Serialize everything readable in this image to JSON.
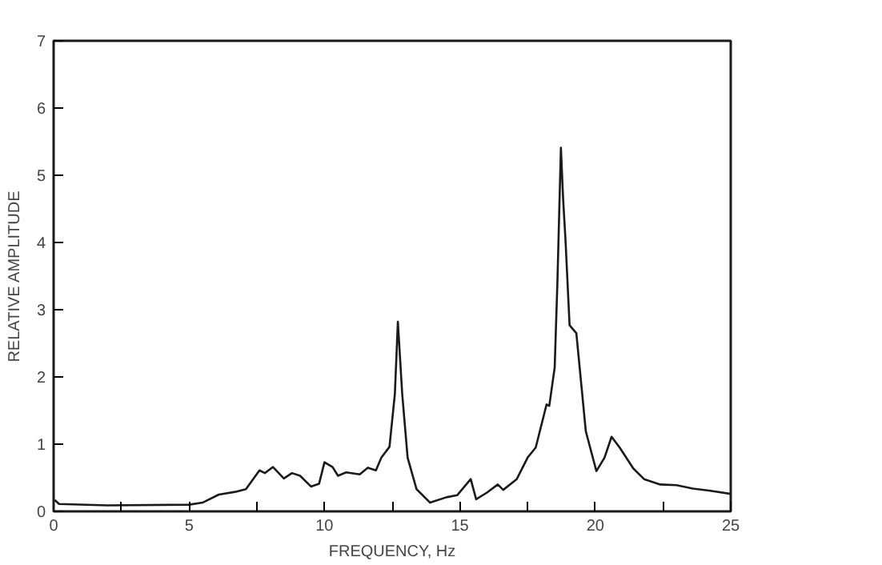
{
  "chart_data": {
    "type": "line",
    "xlabel": "FREQUENCY, Hz",
    "ylabel": "RELATIVE AMPLITUDE",
    "xlim": [
      0,
      25
    ],
    "ylim": [
      0,
      7
    ],
    "xticks": [
      0,
      {
        "value": 2.5,
        "label": null
      },
      5,
      {
        "value": 7.5,
        "label": null
      },
      10,
      {
        "value": 12.5,
        "label": null
      },
      15,
      {
        "value": 17.5,
        "label": null
      },
      20,
      {
        "value": 22.5,
        "label": null
      },
      25
    ],
    "yticks": [
      0,
      1,
      2,
      3,
      4,
      5,
      6,
      7
    ],
    "grid": false,
    "marker": "none",
    "line_style": "solid",
    "series": [
      {
        "color": "#1a1a1a",
        "x": [
          0.04,
          0.2,
          2,
          5,
          5.5,
          6.1,
          6.7,
          7.1,
          7.6,
          7.8,
          8.1,
          8.5,
          8.8,
          9.1,
          9.5,
          9.8,
          10,
          10.3,
          10.5,
          10.8,
          11.3,
          11.6,
          11.9,
          12.1,
          12.4,
          12.6,
          12.71,
          12.87,
          13.07,
          13.4,
          13.9,
          14.5,
          14.9,
          15.4,
          15.6,
          16,
          16.4,
          16.6,
          17.1,
          17.5,
          17.8,
          18.2,
          18.3,
          18.5,
          18.6,
          18.73,
          18.81,
          18.9,
          19.05,
          19.3,
          19.65,
          20.04,
          20.34,
          20.6,
          20.9,
          21.4,
          21.8,
          22.4,
          23,
          23.6,
          24.2,
          25
        ],
        "values": [
          0.17,
          0.11,
          0.09,
          0.1,
          0.13,
          0.25,
          0.29,
          0.33,
          0.61,
          0.57,
          0.66,
          0.49,
          0.57,
          0.53,
          0.37,
          0.41,
          0.73,
          0.66,
          0.53,
          0.58,
          0.55,
          0.65,
          0.61,
          0.8,
          0.96,
          1.75,
          2.82,
          1.75,
          0.8,
          0.33,
          0.13,
          0.21,
          0.24,
          0.48,
          0.18,
          0.28,
          0.4,
          0.32,
          0.48,
          0.8,
          0.95,
          1.59,
          1.57,
          2.14,
          3.4,
          5.41,
          4.66,
          4.03,
          2.77,
          2.65,
          1.19,
          0.6,
          0.8,
          1.11,
          0.95,
          0.64,
          0.48,
          0.4,
          0.39,
          0.34,
          0.31,
          0.26
        ]
      }
    ]
  }
}
